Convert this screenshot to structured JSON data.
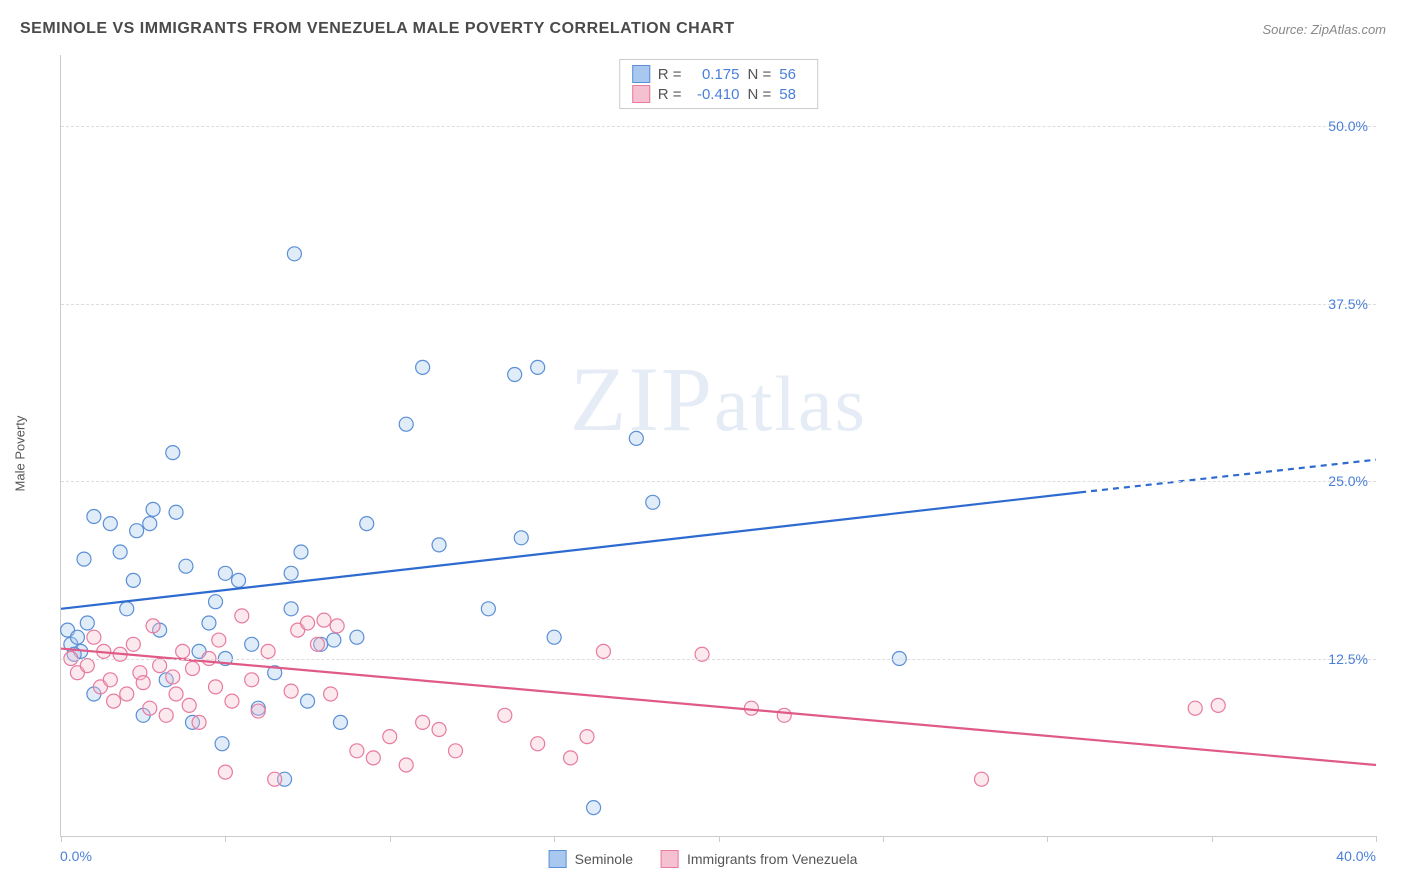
{
  "title": "SEMINOLE VS IMMIGRANTS FROM VENEZUELA MALE POVERTY CORRELATION CHART",
  "source": "Source: ZipAtlas.com",
  "ylabel": "Male Poverty",
  "watermark": "ZIPatlas",
  "chart": {
    "type": "scatter",
    "xlim": [
      0,
      40
    ],
    "ylim": [
      0,
      55
    ],
    "x_start_label": "0.0%",
    "x_end_label": "40.0%",
    "xtick_positions": [
      0,
      5,
      10,
      15,
      20,
      25,
      30,
      35,
      40
    ],
    "y_gridlines": [
      {
        "value": 12.5,
        "label": "12.5%"
      },
      {
        "value": 25.0,
        "label": "25.0%"
      },
      {
        "value": 37.5,
        "label": "37.5%"
      },
      {
        "value": 50.0,
        "label": "50.0%"
      }
    ],
    "background_color": "#ffffff",
    "grid_color": "#dddddd",
    "axis_color": "#cccccc",
    "tick_label_color": "#4a7fd8",
    "marker_radius": 7,
    "marker_fill_opacity": 0.35,
    "marker_stroke_width": 1.2
  },
  "series": [
    {
      "name": "Seminole",
      "color_fill": "#a9c8ef",
      "color_stroke": "#5b8fd6",
      "stats": {
        "R": "0.175",
        "N": "56"
      },
      "trend": {
        "x1": 0,
        "y1": 16.0,
        "x_solid_end": 31,
        "y_solid_end": 24.2,
        "x2": 40,
        "y2": 26.5,
        "color": "#2e6bd1",
        "width": 2.2
      },
      "points": [
        [
          0.2,
          14.5
        ],
        [
          0.3,
          13.5
        ],
        [
          0.5,
          14.0
        ],
        [
          0.6,
          13.0
        ],
        [
          0.8,
          15.0
        ],
        [
          0.4,
          12.8
        ],
        [
          0.7,
          19.5
        ],
        [
          1.0,
          22.5
        ],
        [
          1.0,
          10.0
        ],
        [
          1.5,
          22.0
        ],
        [
          1.8,
          20.0
        ],
        [
          2.0,
          16.0
        ],
        [
          2.2,
          18.0
        ],
        [
          2.3,
          21.5
        ],
        [
          2.5,
          8.5
        ],
        [
          2.7,
          22.0
        ],
        [
          2.8,
          23.0
        ],
        [
          3.0,
          14.5
        ],
        [
          3.2,
          11.0
        ],
        [
          3.4,
          27.0
        ],
        [
          3.5,
          22.8
        ],
        [
          3.8,
          19.0
        ],
        [
          4.0,
          8.0
        ],
        [
          4.2,
          13.0
        ],
        [
          4.5,
          15.0
        ],
        [
          4.7,
          16.5
        ],
        [
          4.9,
          6.5
        ],
        [
          5.0,
          18.5
        ],
        [
          5.0,
          12.5
        ],
        [
          5.4,
          18.0
        ],
        [
          5.8,
          13.5
        ],
        [
          6.0,
          9.0
        ],
        [
          6.5,
          11.5
        ],
        [
          6.8,
          4.0
        ],
        [
          7.0,
          16.0
        ],
        [
          7.1,
          41.0
        ],
        [
          7.3,
          20.0
        ],
        [
          7.5,
          9.5
        ],
        [
          7.9,
          13.5
        ],
        [
          8.3,
          13.8
        ],
        [
          8.5,
          8.0
        ],
        [
          9.0,
          14.0
        ],
        [
          9.3,
          22.0
        ],
        [
          10.5,
          29.0
        ],
        [
          11.0,
          33.0
        ],
        [
          11.5,
          20.5
        ],
        [
          13.0,
          16.0
        ],
        [
          13.8,
          32.5
        ],
        [
          14.0,
          21.0
        ],
        [
          14.5,
          33.0
        ],
        [
          15.0,
          14.0
        ],
        [
          16.2,
          2.0
        ],
        [
          17.5,
          28.0
        ],
        [
          18.0,
          23.5
        ],
        [
          25.5,
          12.5
        ],
        [
          7.0,
          18.5
        ]
      ]
    },
    {
      "name": "Immigrants from Venezuela",
      "color_fill": "#f5c0cf",
      "color_stroke": "#e77ba0",
      "stats": {
        "R": "-0.410",
        "N": "58"
      },
      "trend": {
        "x1": 0,
        "y1": 13.2,
        "x_solid_end": 40,
        "y_solid_end": 5.0,
        "x2": 40,
        "y2": 5.0,
        "color": "#e05a87",
        "width": 2.2
      },
      "points": [
        [
          0.3,
          12.5
        ],
        [
          0.5,
          11.5
        ],
        [
          0.8,
          12.0
        ],
        [
          1.0,
          14.0
        ],
        [
          1.2,
          10.5
        ],
        [
          1.3,
          13.0
        ],
        [
          1.5,
          11.0
        ],
        [
          1.6,
          9.5
        ],
        [
          1.8,
          12.8
        ],
        [
          2.0,
          10.0
        ],
        [
          2.2,
          13.5
        ],
        [
          2.4,
          11.5
        ],
        [
          2.5,
          10.8
        ],
        [
          2.7,
          9.0
        ],
        [
          2.8,
          14.8
        ],
        [
          3.0,
          12.0
        ],
        [
          3.2,
          8.5
        ],
        [
          3.4,
          11.2
        ],
        [
          3.5,
          10.0
        ],
        [
          3.7,
          13.0
        ],
        [
          3.9,
          9.2
        ],
        [
          4.0,
          11.8
        ],
        [
          4.2,
          8.0
        ],
        [
          4.5,
          12.5
        ],
        [
          4.7,
          10.5
        ],
        [
          5.0,
          4.5
        ],
        [
          5.2,
          9.5
        ],
        [
          5.5,
          15.5
        ],
        [
          5.8,
          11.0
        ],
        [
          6.0,
          8.8
        ],
        [
          6.3,
          13.0
        ],
        [
          6.5,
          4.0
        ],
        [
          7.0,
          10.2
        ],
        [
          7.2,
          14.5
        ],
        [
          7.5,
          15.0
        ],
        [
          7.8,
          13.5
        ],
        [
          8.0,
          15.2
        ],
        [
          8.2,
          10.0
        ],
        [
          8.4,
          14.8
        ],
        [
          9.0,
          6.0
        ],
        [
          9.5,
          5.5
        ],
        [
          10.0,
          7.0
        ],
        [
          10.5,
          5.0
        ],
        [
          11.0,
          8.0
        ],
        [
          11.5,
          7.5
        ],
        [
          12.0,
          6.0
        ],
        [
          13.5,
          8.5
        ],
        [
          14.5,
          6.5
        ],
        [
          15.5,
          5.5
        ],
        [
          16.0,
          7.0
        ],
        [
          16.5,
          13.0
        ],
        [
          19.5,
          12.8
        ],
        [
          21.0,
          9.0
        ],
        [
          22.0,
          8.5
        ],
        [
          28.0,
          4.0
        ],
        [
          34.5,
          9.0
        ],
        [
          35.2,
          9.2
        ],
        [
          4.8,
          13.8
        ]
      ]
    }
  ],
  "stats_box": {
    "r_label": "R =",
    "n_label": "N ="
  },
  "legend": {
    "series1": "Seminole",
    "series2": "Immigrants from Venezuela"
  }
}
